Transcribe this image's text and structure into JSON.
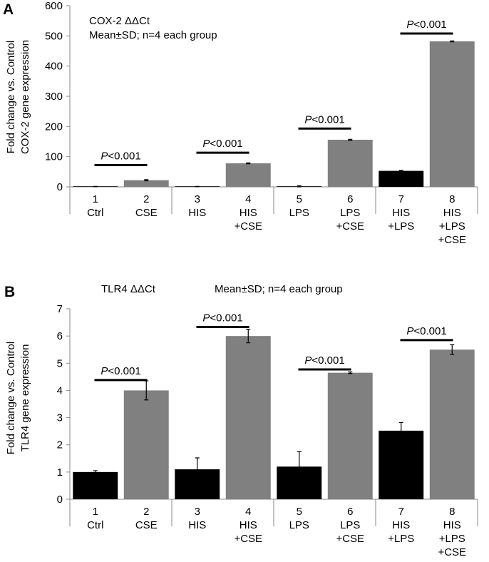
{
  "chart_data": [
    {
      "type": "bar",
      "panel_label": "A",
      "title": "COX-2 ΔΔCt",
      "subtitle": "Mean±SD; n=4 each group",
      "ylabel_lines": [
        "Fold change  vs. Control",
        "COX-2 gene expression"
      ],
      "ylim": [
        0,
        600
      ],
      "yticks": [
        "0",
        "100",
        "200",
        "300",
        "400",
        "500",
        "600"
      ],
      "categories": [
        [
          "1",
          "Ctrl"
        ],
        [
          "2",
          "CSE"
        ],
        [
          "3",
          "HIS"
        ],
        [
          "4",
          "HIS",
          "+CSE"
        ],
        [
          "5",
          "LPS"
        ],
        [
          "6",
          "LPS",
          "+CSE"
        ],
        [
          "7",
          "HIS",
          "+LPS"
        ],
        [
          "8",
          "HIS",
          "+LPS",
          "+CSE"
        ]
      ],
      "values": [
        1,
        22,
        1,
        78,
        2,
        156,
        53,
        482
      ],
      "errors": [
        0.5,
        2,
        0.5,
        1.5,
        2,
        1.5,
        1.5,
        1.5
      ],
      "colors": [
        "#000000",
        "#808080",
        "#000000",
        "#808080",
        "#000000",
        "#808080",
        "#000000",
        "#808080"
      ],
      "significance": [
        {
          "label": "P<0.001",
          "italic": "P",
          "rest": "<0.001",
          "pair": [
            0,
            1
          ],
          "y": 72
        },
        {
          "label": "P<0.001",
          "italic": "P",
          "rest": "<0.001",
          "pair": [
            2,
            3
          ],
          "y": 113
        },
        {
          "label": "P<0.001",
          "italic": "P",
          "rest": "<0.001",
          "pair": [
            4,
            5
          ],
          "y": 193
        },
        {
          "label": "P<0.001",
          "italic": "P",
          "rest": "<0.001",
          "pair": [
            6,
            7
          ],
          "y": 508
        }
      ]
    },
    {
      "type": "bar",
      "panel_label": "B",
      "title": "TLR4 ΔΔCt",
      "subtitle": "Mean±SD; n=4 each group",
      "ylabel_lines": [
        "Fold change  vs. Control",
        "TLR4 gene expression"
      ],
      "ylim": [
        0,
        7
      ],
      "yticks": [
        "0",
        "1",
        "2",
        "3",
        "4",
        "5",
        "6",
        "7"
      ],
      "categories": [
        [
          "1",
          "Ctrl"
        ],
        [
          "2",
          "CSE"
        ],
        [
          "3",
          "HIS"
        ],
        [
          "4",
          "HIS",
          "+CSE"
        ],
        [
          "5",
          "LPS"
        ],
        [
          "6",
          "LPS",
          "+CSE"
        ],
        [
          "7",
          "HIS",
          "+LPS"
        ],
        [
          "8",
          "HIS",
          "+LPS",
          "+CSE"
        ]
      ],
      "values": [
        1.0,
        4.0,
        1.1,
        6.0,
        1.2,
        4.65,
        2.52,
        5.5
      ],
      "errors": [
        0.05,
        0.35,
        0.42,
        0.25,
        0.55,
        0.03,
        0.3,
        0.18
      ],
      "colors": [
        "#000000",
        "#808080",
        "#000000",
        "#808080",
        "#000000",
        "#808080",
        "#000000",
        "#808080"
      ],
      "significance": [
        {
          "label": "P<0.001",
          "italic": "P",
          "rest": "<0.001",
          "pair": [
            0,
            1
          ],
          "y": 4.38
        },
        {
          "label": "P<0.001",
          "italic": "P",
          "rest": "<0.001",
          "pair": [
            2,
            3
          ],
          "y": 6.33
        },
        {
          "label": "P<0.001",
          "italic": "P",
          "rest": "<0.001",
          "pair": [
            4,
            5
          ],
          "y": 4.77
        },
        {
          "label": "P<0.001",
          "italic": "P",
          "rest": "<0.001",
          "pair": [
            6,
            7
          ],
          "y": 5.85
        }
      ]
    }
  ]
}
